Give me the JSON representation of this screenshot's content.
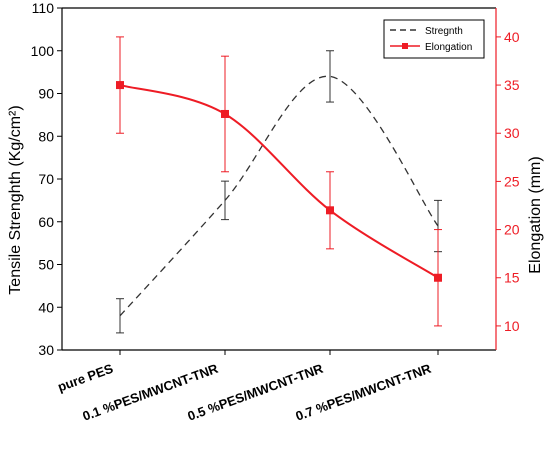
{
  "chart_data": {
    "type": "line",
    "categories": [
      "pure PES",
      "0.1 %PES/MWCNT-TNR",
      "0.5 %PES/MWCNT-TNR",
      "0.7 %PES/MWCNT-TNR"
    ],
    "ylabel": "Tensile Strenghth (Kg/cm²)",
    "y2label": "Elongation (mm)",
    "ylim": [
      30,
      110
    ],
    "y2lim": [
      7.5,
      43
    ],
    "y_ticks": [
      "30",
      "40",
      "50",
      "60",
      "70",
      "80",
      "90",
      "100",
      "110"
    ],
    "y2_ticks": [
      "10",
      "15",
      "20",
      "25",
      "30",
      "35",
      "40"
    ],
    "legend_position": "top-right",
    "series": [
      {
        "name": "Stregnth",
        "axis": "left",
        "style": "dashed",
        "color": "#333333",
        "values": [
          38,
          65,
          94,
          59
        ],
        "error": [
          4,
          4.5,
          6,
          6
        ]
      },
      {
        "name": "Elongation",
        "axis": "right",
        "style": "solid",
        "marker": "square",
        "color": "#ee1c25",
        "values": [
          35,
          32,
          22,
          15
        ],
        "error": [
          5,
          6,
          4,
          5
        ]
      }
    ]
  }
}
